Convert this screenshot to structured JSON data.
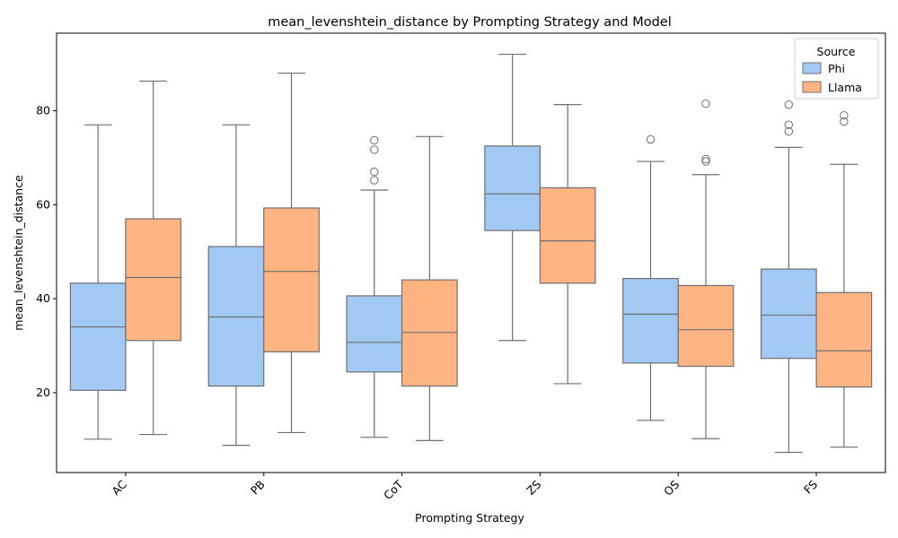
{
  "chart_data": {
    "type": "box",
    "title": "mean_levenshtein_distance by Prompting Strategy and Model",
    "xlabel": "Prompting Strategy",
    "ylabel": "mean_levenshtein_distance",
    "ylim": [
      3,
      96.5
    ],
    "yticks": [
      20,
      40,
      60,
      80
    ],
    "categories": [
      "AC",
      "PB",
      "CoT",
      "ZS",
      "OS",
      "FS"
    ],
    "legend": {
      "title": "Source",
      "position": "top-right"
    },
    "series": [
      {
        "name": "Phi",
        "color": "#a1c9f4",
        "boxes": [
          {
            "whisker_low": 10.1,
            "q1": 20.5,
            "median": 34.0,
            "q3": 43.3,
            "whisker_high": 77.0,
            "outliers": []
          },
          {
            "whisker_low": 8.8,
            "q1": 21.4,
            "median": 36.1,
            "q3": 51.1,
            "whisker_high": 77.0,
            "outliers": []
          },
          {
            "whisker_low": 10.5,
            "q1": 24.4,
            "median": 30.7,
            "q3": 40.6,
            "whisker_high": 63.1,
            "outliers": [
              65.2,
              67.0,
              71.7,
              73.7
            ]
          },
          {
            "whisker_low": 31.1,
            "q1": 54.5,
            "median": 62.3,
            "q3": 72.5,
            "whisker_high": 92.0,
            "outliers": []
          },
          {
            "whisker_low": 14.1,
            "q1": 26.3,
            "median": 36.7,
            "q3": 44.3,
            "whisker_high": 69.2,
            "outliers": [
              73.9
            ]
          },
          {
            "whisker_low": 7.3,
            "q1": 27.3,
            "median": 36.5,
            "q3": 46.3,
            "whisker_high": 72.2,
            "outliers": [
              75.6,
              77.0,
              81.3
            ]
          }
        ]
      },
      {
        "name": "Llama",
        "color": "#ffb482",
        "boxes": [
          {
            "whisker_low": 11.1,
            "q1": 31.1,
            "median": 44.5,
            "q3": 57.0,
            "whisker_high": 86.3,
            "outliers": []
          },
          {
            "whisker_low": 11.5,
            "q1": 28.7,
            "median": 45.8,
            "q3": 59.3,
            "whisker_high": 88.0,
            "outliers": []
          },
          {
            "whisker_low": 9.8,
            "q1": 21.4,
            "median": 32.8,
            "q3": 44.0,
            "whisker_high": 74.5,
            "outliers": []
          },
          {
            "whisker_low": 21.9,
            "q1": 43.3,
            "median": 52.3,
            "q3": 63.6,
            "whisker_high": 81.3,
            "outliers": []
          },
          {
            "whisker_low": 10.2,
            "q1": 25.6,
            "median": 33.4,
            "q3": 42.8,
            "whisker_high": 66.4,
            "outliers": [
              69.2,
              69.7,
              81.5
            ]
          },
          {
            "whisker_low": 8.4,
            "q1": 21.2,
            "median": 28.9,
            "q3": 41.3,
            "whisker_high": 68.6,
            "outliers": [
              77.7,
              79.0
            ]
          }
        ]
      }
    ]
  }
}
